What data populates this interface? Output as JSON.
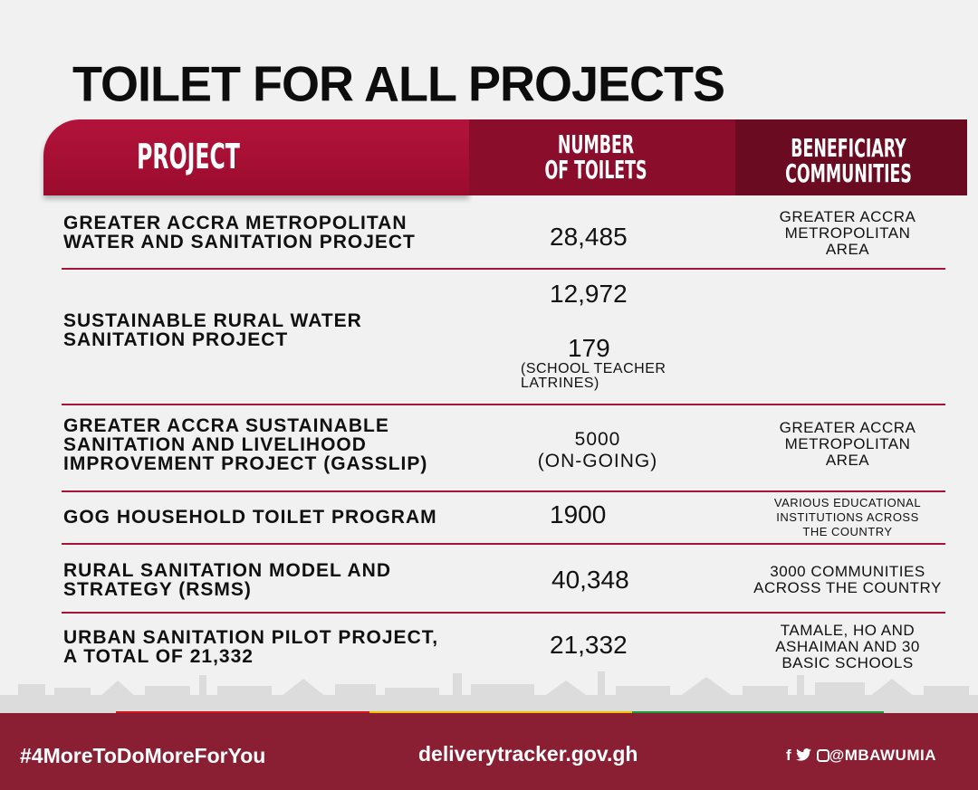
{
  "title": "TOILET FOR ALL PROJECTS",
  "header": {
    "project": "PROJECT",
    "number_line1": "NUMBER",
    "number_line2": "OF TOILETS",
    "benef_line1": "BENEFICIARY",
    "benef_line2": "COMMUNITIES"
  },
  "rows": [
    {
      "project_lines": [
        "GREATER ACCRA METROPOLITAN",
        "WATER AND SANITATION PROJECT"
      ],
      "number": "28,485",
      "benef_lines": [
        "GREATER ACCRA",
        "METROPOLITAN",
        "AREA"
      ]
    },
    {
      "project_lines": [
        "SUSTAINABLE RURAL WATER",
        "SANITATION PROJECT"
      ],
      "number": "12,972",
      "number_extra": "179",
      "number_note_lines": [
        "(SCHOOL TEACHER",
        "LATRINES)"
      ]
    },
    {
      "project_lines": [
        "GREATER ACCRA SUSTAINABLE",
        "SANITATION AND LIVELIHOOD",
        "IMPROVEMENT PROJECT (GASSLIP)"
      ],
      "number_lines": [
        "5000",
        "(ON-GOING)"
      ],
      "benef_lines": [
        "GREATER ACCRA",
        "METROPOLITAN",
        "AREA"
      ]
    },
    {
      "project_lines": [
        "GOG HOUSEHOLD TOILET PROGRAM"
      ],
      "number": "1900",
      "benef_lines": [
        "VARIOUS EDUCATIONAL",
        "INSTITUTIONS ACROSS",
        "THE COUNTRY"
      ]
    },
    {
      "project_lines": [
        "RURAL SANITATION MODEL AND",
        "STRATEGY (RSMS)"
      ],
      "number": "40,348",
      "benef_lines": [
        "3000 COMMUNITIES",
        "ACROSS THE COUNTRY"
      ]
    },
    {
      "project_lines": [
        "URBAN SANITATION PILOT PROJECT,",
        "A TOTAL OF 21,332"
      ],
      "number": "21,332",
      "benef_lines": [
        "TAMALE, HO AND",
        "ASHAIMAN AND 30",
        "BASIC SCHOOLS"
      ]
    }
  ],
  "footer": {
    "hashtag": "#4MoreToDoMoreForYou",
    "url": "deliverytracker.gov.gh",
    "social": "@MBAWUMIA",
    "social_icons": [
      "facebook-icon",
      "twitter-icon",
      "instagram-icon"
    ]
  },
  "colors": {
    "header_red": "#b3133a",
    "header_dark": "#8a0d2b",
    "header_darkest": "#6b0b22",
    "footer_maroon": "#8a1e33",
    "strip_red": "#d4141c",
    "strip_yellow": "#f5c400",
    "strip_green": "#1a9a3a"
  }
}
